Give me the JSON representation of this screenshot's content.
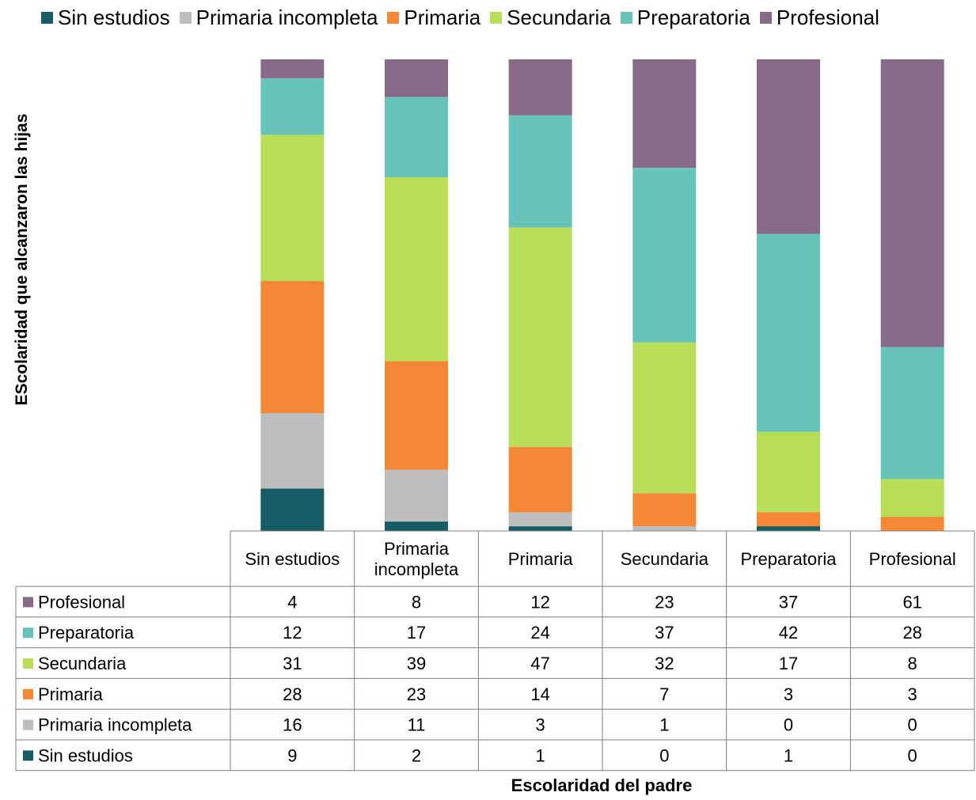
{
  "chart_data": {
    "type": "bar",
    "stacked": "100%",
    "title": "",
    "xlabel": "Escolaridad del padre",
    "ylabel": "EScolaridad que alcanzaron las hijas",
    "legend_position": "top",
    "grid": false,
    "categories": [
      "Sin estudios",
      "Primaria incompleta",
      "Primaria",
      "Secundaria",
      "Preparatoria",
      "Profesional"
    ],
    "series": [
      {
        "name": "Sin estudios",
        "color": "#175c64",
        "values": [
          9,
          2,
          1,
          0,
          1,
          0
        ]
      },
      {
        "name": "Primaria incompleta",
        "color": "#bcbdbd",
        "values": [
          16,
          11,
          3,
          1,
          0,
          0
        ]
      },
      {
        "name": "Primaria",
        "color": "#f58834",
        "values": [
          28,
          23,
          14,
          7,
          3,
          3
        ]
      },
      {
        "name": "Secundaria",
        "color": "#b8dd57",
        "values": [
          31,
          39,
          47,
          32,
          17,
          8
        ]
      },
      {
        "name": "Preparatoria",
        "color": "#67c4b9",
        "values": [
          12,
          17,
          24,
          37,
          42,
          28
        ]
      },
      {
        "name": "Profesional",
        "color": "#876a85",
        "values": [
          4,
          8,
          12,
          23,
          37,
          61
        ]
      }
    ],
    "table_row_order": [
      "Profesional",
      "Preparatoria",
      "Secundaria",
      "Primaria",
      "Primaria incompleta",
      "Sin estudios"
    ]
  }
}
